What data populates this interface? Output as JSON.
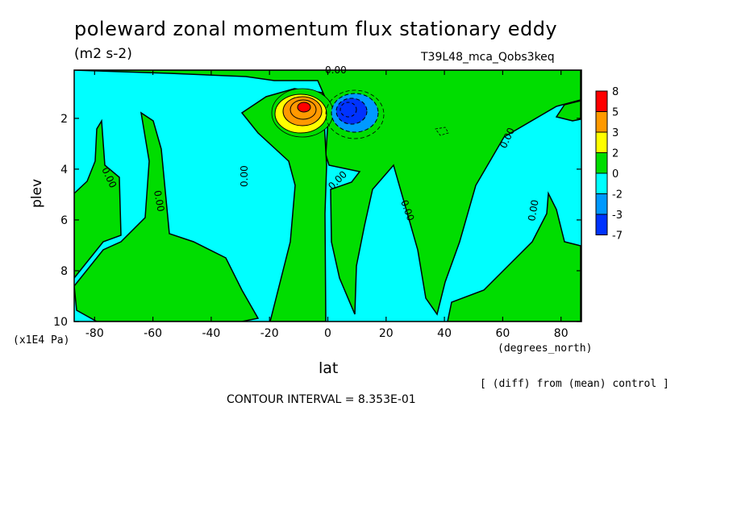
{
  "chart_data": {
    "type": "contour",
    "title": "poleward zonal momentum flux stationary eddy",
    "units": "(m2 s-2)",
    "run_label": "T39L48_mca_Qobs3keq",
    "xlabel": "lat",
    "x_unit": "(degrees_north)",
    "ylabel": "plev",
    "y_unit": "(x1E4 Pa)",
    "xlim": [
      -87,
      87
    ],
    "ylim": [
      10,
      0.1
    ],
    "y_inverted": true,
    "x_ticks": [
      "-80",
      "-60",
      "-40",
      "-20",
      "0",
      "20",
      "40",
      "60",
      "80"
    ],
    "x_tick_values": [
      -80,
      -60,
      -40,
      -20,
      0,
      20,
      40,
      60,
      80
    ],
    "y_ticks": [
      "2",
      "4",
      "6",
      "8",
      "10"
    ],
    "y_tick_values": [
      2,
      4,
      6,
      8,
      10
    ],
    "contour_interval_text": "CONTOUR INTERVAL = 8.353E-01",
    "note": "[ (diff) from (mean) control ]",
    "contour_labels": [
      "0.00",
      "0.00",
      "0.00",
      "0.00",
      "0.00",
      "0.00",
      "0.00",
      "0.00"
    ],
    "colorbar": {
      "labels": [
        "8",
        "5",
        "3",
        "2",
        "0",
        "-2",
        "-3",
        "-7"
      ],
      "colors": [
        "#ff0000",
        "#ff9900",
        "#ffff00",
        "#00dd00",
        "#00ffff",
        "#0099ff",
        "#0033ff"
      ]
    },
    "colors": {
      "positive_low": "#00dd00",
      "negative_low": "#00ffff",
      "positive_mid": "#ff9900",
      "positive_high": "#ff0000",
      "negative_mid": "#0099ff",
      "negative_high": "#0033ff"
    },
    "features": [
      {
        "type": "max",
        "lat": -8,
        "plev": 1.6,
        "approx_value": 5
      },
      {
        "type": "min",
        "lat": 8,
        "plev": 1.7,
        "approx_value": -3
      }
    ]
  }
}
